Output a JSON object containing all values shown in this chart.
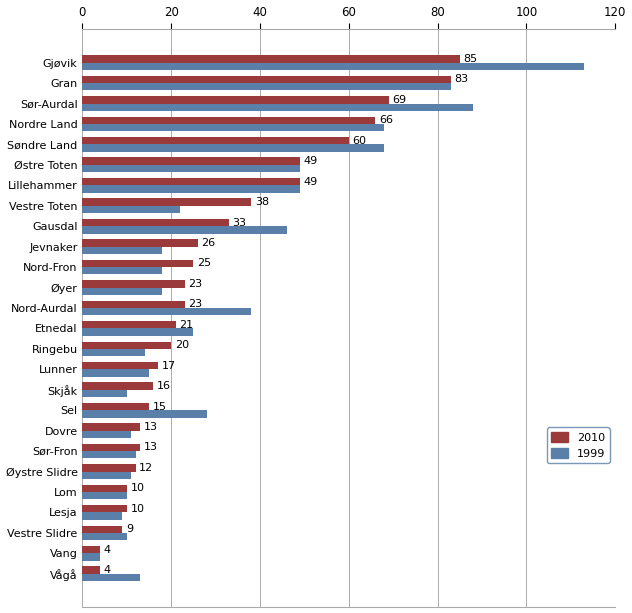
{
  "categories": [
    "Gjøvik",
    "Gran",
    "Sør-Aurdal",
    "Nordre Land",
    "Søndre Land",
    "Østre Toten",
    "Lillehammer",
    "Vestre Toten",
    "Gausdal",
    "Jevnaker",
    "Nord-Fron",
    "Øyer",
    "Nord-Aurdal",
    "Etnedal",
    "Ringebu",
    "Lunner",
    "Skjåk",
    "Sel",
    "Dovre",
    "Sør-Fron",
    "Øystre Slidre",
    "Lom",
    "Lesja",
    "Vestre Slidre",
    "Vang",
    "Vågå"
  ],
  "values_2010": [
    85,
    83,
    69,
    66,
    60,
    49,
    49,
    38,
    33,
    26,
    25,
    23,
    23,
    21,
    20,
    17,
    16,
    15,
    13,
    13,
    12,
    10,
    10,
    9,
    4,
    4
  ],
  "values_1999": [
    113,
    83,
    88,
    68,
    68,
    49,
    49,
    22,
    46,
    18,
    18,
    18,
    38,
    25,
    14,
    15,
    10,
    28,
    11,
    12,
    11,
    10,
    9,
    10,
    4,
    13
  ],
  "color_2010": "#9B3A3A",
  "color_1999": "#5A7FA8",
  "xlim": [
    0,
    120
  ],
  "xticks": [
    0,
    20,
    40,
    60,
    80,
    100,
    120
  ],
  "legend_labels": [
    "2010",
    "1999"
  ],
  "bar_height": 0.36,
  "background_color": "#ffffff",
  "grid_color": "#aaaaaa",
  "label_fontsize": 8.0,
  "tick_fontsize": 8.5
}
